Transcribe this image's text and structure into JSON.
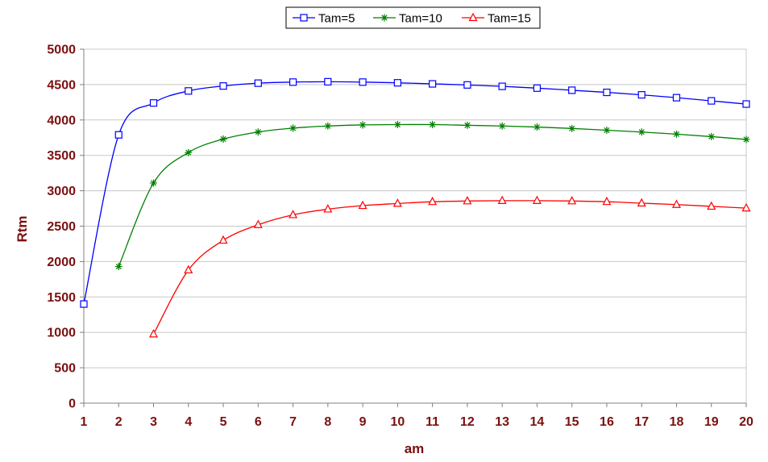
{
  "chart_data": {
    "type": "line",
    "title": "",
    "xlabel": "am",
    "ylabel": "Rtm",
    "x": [
      1,
      2,
      3,
      4,
      5,
      6,
      7,
      8,
      9,
      10,
      11,
      12,
      13,
      14,
      15,
      16,
      17,
      18,
      19,
      20
    ],
    "xlim": [
      1,
      20
    ],
    "ylim": [
      0,
      5000
    ],
    "yticks": [
      0,
      500,
      1000,
      1500,
      2000,
      2500,
      3000,
      3500,
      4000,
      4500,
      5000
    ],
    "grid": "y-major",
    "legend_position": "top-center",
    "series": [
      {
        "name": "Tam=5",
        "color": "#0000ff",
        "marker": "square",
        "x": [
          1,
          2,
          3,
          4,
          5,
          6,
          7,
          8,
          9,
          10,
          11,
          12,
          13,
          14,
          15,
          16,
          17,
          18,
          19,
          20
        ],
        "values": [
          1400,
          3790,
          4240,
          4410,
          4480,
          4520,
          4535,
          4540,
          4535,
          4525,
          4510,
          4495,
          4475,
          4450,
          4420,
          4390,
          4355,
          4315,
          4270,
          4225
        ]
      },
      {
        "name": "Tam=10",
        "color": "#008000",
        "marker": "asterisk",
        "x": [
          2,
          3,
          4,
          5,
          6,
          7,
          8,
          9,
          10,
          11,
          12,
          13,
          14,
          15,
          16,
          17,
          18,
          19,
          20
        ],
        "values": [
          1930,
          3110,
          3540,
          3730,
          3830,
          3885,
          3915,
          3930,
          3935,
          3935,
          3925,
          3915,
          3900,
          3880,
          3855,
          3830,
          3800,
          3765,
          3725
        ]
      },
      {
        "name": "Tam=15",
        "color": "#ff0000",
        "marker": "triangle",
        "x": [
          3,
          4,
          5,
          6,
          7,
          8,
          9,
          10,
          11,
          12,
          13,
          14,
          15,
          16,
          17,
          18,
          19,
          20
        ],
        "values": [
          975,
          1880,
          2300,
          2520,
          2660,
          2740,
          2790,
          2820,
          2845,
          2855,
          2860,
          2860,
          2855,
          2845,
          2825,
          2805,
          2780,
          2755
        ]
      }
    ]
  }
}
